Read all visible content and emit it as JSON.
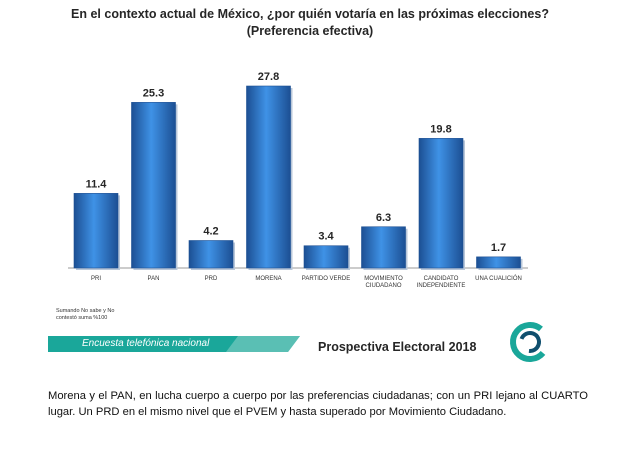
{
  "title_line1": "En el contexto actual de México, ¿por quién votaría en las próximas elecciones?",
  "title_line2": "(Preferencia efectiva)",
  "note": "Sumando No sabe y No contestó suma %100",
  "survey_label": "Encuesta telefónica nacional",
  "brand": "Prospectiva Electoral 2018",
  "caption": "Morena y el PAN, en lucha cuerpo a cuerpo por las preferencias ciudadanas; con un PRI lejano al CUARTO lugar. Un PRD en el mismo nivel que el PVEM y hasta superado por Movimiento Ciudadano.",
  "colors": {
    "bar": "#2f7fd6",
    "bar_dark": "#1c4f93",
    "band": "#1aa79a"
  },
  "chart_data": {
    "type": "bar",
    "title": "En el contexto actual de México, ¿por quién votaría en las próximas elecciones? (Preferencia efectiva)",
    "categories": [
      "PRI",
      "PAN",
      "PRD",
      "MORENA",
      "PARTIDO VERDE",
      "MOVIMIENTO CIUDADANO",
      "CANDIDATO INDEPENDIENTE",
      "UNA CUALICIÓN"
    ],
    "category_lines": [
      [
        "PRI"
      ],
      [
        "PAN"
      ],
      [
        "PRD"
      ],
      [
        "MORENA"
      ],
      [
        "PARTIDO VERDE"
      ],
      [
        "MOVIMIENTO",
        "CIUDADANO"
      ],
      [
        "CANDIDATO",
        "INDEPENDIENTE"
      ],
      [
        "UNA CUALICIÓN"
      ]
    ],
    "values": [
      11.4,
      25.3,
      4.2,
      27.8,
      3.4,
      6.3,
      19.8,
      1.7
    ],
    "data_labels": [
      "11.4",
      "25.3",
      "4.2",
      "27.8",
      "3.4",
      "6.3",
      "19.8",
      "1.7"
    ],
    "ylim": [
      0,
      27.8
    ],
    "grid": false,
    "legend": "none"
  }
}
